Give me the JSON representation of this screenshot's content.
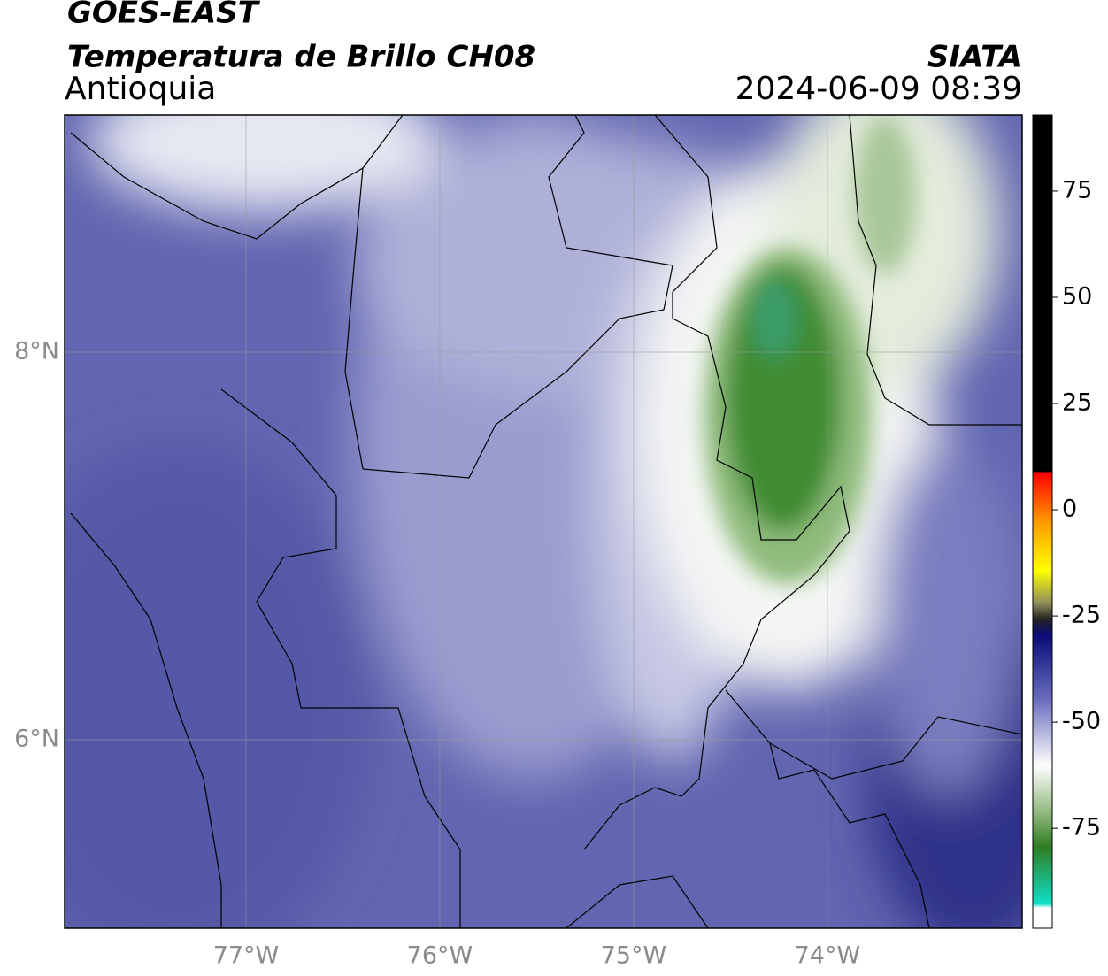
{
  "header": {
    "title": "GOES-EAST",
    "subtitle": "Temperatura de Brillo CH08",
    "region": "Antioquia",
    "source": "SIATA",
    "datetime": "2024-06-09 08:39"
  },
  "map": {
    "xlim": [
      -77.936,
      -72.995
    ],
    "ylim": [
      5.027,
      9.224
    ],
    "xticks": [
      {
        "value": -77,
        "label": "77°W"
      },
      {
        "value": -76,
        "label": "76°W"
      },
      {
        "value": -75,
        "label": "75°W"
      },
      {
        "value": -74,
        "label": "74°W"
      }
    ],
    "yticks": [
      {
        "value": 8,
        "label": "8°N"
      },
      {
        "value": 6,
        "label": "6°N"
      }
    ],
    "grid": true
  },
  "colorbar": {
    "ylim": [
      -98.5,
      92.9
    ],
    "yticks": [
      75,
      50,
      25,
      0,
      -25,
      -50,
      -75
    ]
  }
}
